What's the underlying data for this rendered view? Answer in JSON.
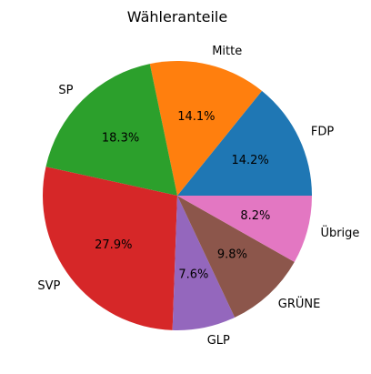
{
  "chart_data": {
    "type": "pie",
    "title": "Wähleranteile",
    "labels": [
      "FDP",
      "Mitte",
      "SP",
      "SVP",
      "GLP",
      "GRÜNE",
      "Übrige"
    ],
    "values": [
      14.2,
      14.1,
      18.3,
      27.9,
      7.6,
      9.8,
      8.2
    ],
    "value_labels": [
      "14.2%",
      "14.1%",
      "18.3%",
      "27.9%",
      "7.6%",
      "9.8%",
      "8.2%"
    ],
    "colors": [
      "#1f77b4",
      "#ff7f0e",
      "#2ca02c",
      "#d62728",
      "#9467bd",
      "#8c564b",
      "#e377c2"
    ],
    "start_angle": 0,
    "direction": "counterclockwise",
    "legend": "none"
  }
}
